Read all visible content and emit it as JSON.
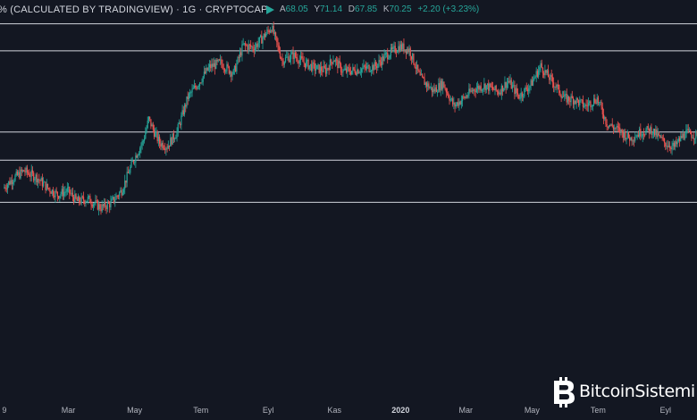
{
  "header": {
    "title": "% (CALCULATED BY TRADINGVIEW) · 1G · CRYPTOCAP",
    "ohlc": {
      "open_label": "A",
      "open": "68.05",
      "high_label": "Y",
      "high": "71.14",
      "low_label": "D",
      "low": "67.85",
      "close_label": "K",
      "close": "70.25",
      "change": "+2.20 (+3.23%)"
    },
    "colors": {
      "up": "#26a69a",
      "down": "#ef5350",
      "background": "#131722",
      "line": "#d1d4dc"
    }
  },
  "watermark": {
    "text": "BitcoinSistemi",
    "icon": "bitcoin-logo-icon"
  },
  "chart_data": {
    "type": "line",
    "style": "candlestick",
    "x_tick_labels": [
      "9",
      "Mar",
      "May",
      "Tem",
      "Eyl",
      "Kas",
      "2020",
      "Mar",
      "May",
      "Tem",
      "Eyl"
    ],
    "x_tick_dates": [
      "2019-01-01",
      "2019-03-01",
      "2019-05-01",
      "2019-07-01",
      "2019-09-01",
      "2019-11-01",
      "2020-01-01",
      "2020-03-01",
      "2020-05-01",
      "2020-07-01",
      "2020-09-01"
    ],
    "x_range": [
      "2018-12-28",
      "2020-09-30"
    ],
    "ylim": [
      38,
      75
    ],
    "grid": false,
    "horizontal_levels": [
      72.8,
      70.3,
      62.8,
      60.2,
      56.3
    ],
    "series": [
      {
        "x": [
          "2019-01-01",
          "2019-01-10",
          "2019-01-20",
          "2019-02-01",
          "2019-02-10",
          "2019-02-20",
          "2019-03-01",
          "2019-03-10",
          "2019-03-20",
          "2019-04-01",
          "2019-04-10",
          "2019-04-20",
          "2019-05-01",
          "2019-05-10",
          "2019-05-15",
          "2019-05-20",
          "2019-05-25",
          "2019-06-01",
          "2019-06-10",
          "2019-06-20",
          "2019-07-01",
          "2019-07-10",
          "2019-07-20",
          "2019-08-01",
          "2019-08-10",
          "2019-08-20",
          "2019-09-01",
          "2019-09-05",
          "2019-09-15",
          "2019-09-25",
          "2019-10-05",
          "2019-10-15",
          "2019-10-25",
          "2019-11-01",
          "2019-11-10",
          "2019-11-20",
          "2019-12-01",
          "2019-12-10",
          "2019-12-20",
          "2020-01-01",
          "2020-01-10",
          "2020-01-20",
          "2020-02-01",
          "2020-02-10",
          "2020-02-20",
          "2020-03-01",
          "2020-03-10",
          "2020-03-20",
          "2020-04-01",
          "2020-04-10",
          "2020-04-20",
          "2020-05-01",
          "2020-05-10",
          "2020-05-15",
          "2020-05-25",
          "2020-06-01",
          "2020-06-10",
          "2020-06-20",
          "2020-07-01",
          "2020-07-10",
          "2020-07-20",
          "2020-08-01",
          "2020-08-10",
          "2020-08-20",
          "2020-09-01",
          "2020-09-10",
          "2020-09-20",
          "2020-09-30"
        ],
        "values": [
          57.6,
          58.5,
          59.2,
          58.6,
          57.7,
          57.0,
          57.4,
          56.4,
          56.6,
          55.8,
          56.2,
          57.4,
          60.2,
          62.0,
          64.0,
          62.8,
          61.8,
          61.5,
          62.8,
          66.0,
          67.5,
          68.8,
          69.2,
          68.2,
          70.8,
          70.6,
          72.0,
          72.5,
          69.4,
          69.9,
          69.2,
          68.7,
          68.5,
          69.6,
          68.4,
          68.5,
          68.7,
          68.9,
          69.9,
          70.7,
          70.4,
          67.8,
          66.6,
          67.3,
          65.2,
          66.0,
          66.8,
          67.1,
          66.5,
          67.5,
          66.1,
          67.2,
          68.9,
          68.2,
          66.9,
          65.9,
          65.8,
          65.2,
          65.9,
          63.6,
          63.0,
          62.2,
          62.8,
          63.0,
          61.8,
          61.4,
          62.7,
          62.5
        ]
      }
    ]
  }
}
